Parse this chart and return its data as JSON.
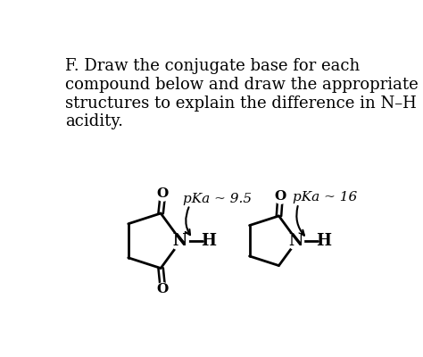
{
  "bg_color": "#ffffff",
  "text_color": "#000000",
  "title_lines": [
    "F. Draw the conjugate base for each",
    "compound below and draw the appropriate",
    "structures to explain the difference in N–H",
    "acidity."
  ],
  "pka_left_text": "pKa ~ 9.5",
  "pka_right_text": "pKa ~ 16",
  "figsize": [
    4.74,
    4.0
  ],
  "dpi": 100
}
